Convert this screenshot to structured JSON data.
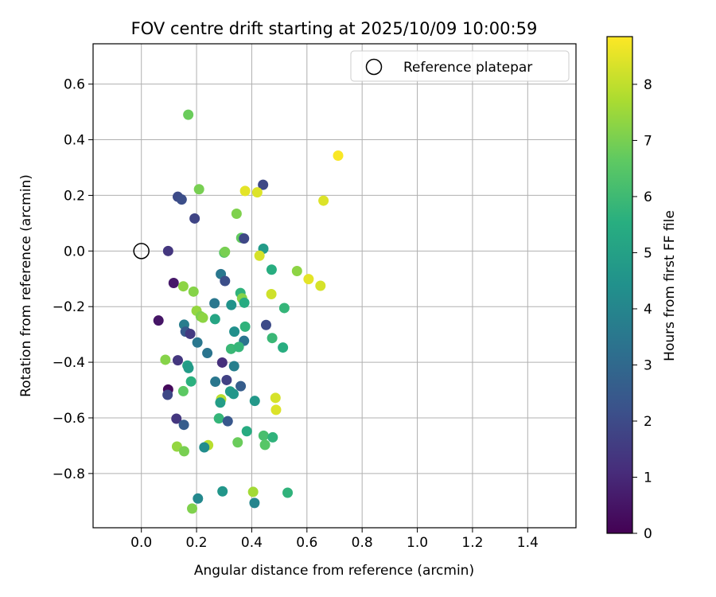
{
  "chart_data": {
    "type": "scatter",
    "title": "FOV centre drift starting at 2025/10/09 10:00:59",
    "xlabel": "Angular distance from reference (arcmin)",
    "ylabel": "Rotation from reference (arcmin)",
    "xlim": [
      -0.175,
      1.575
    ],
    "ylim": [
      -0.995,
      0.745
    ],
    "xticks": [
      0.0,
      0.2,
      0.4,
      0.6,
      0.8,
      1.0,
      1.2,
      1.4
    ],
    "xtick_labels": [
      "0.0",
      "0.2",
      "0.4",
      "0.6",
      "0.8",
      "1.0",
      "1.2",
      "1.4"
    ],
    "yticks": [
      0.6,
      0.4,
      0.2,
      0.0,
      -0.2,
      -0.4,
      -0.6,
      -0.8
    ],
    "ytick_labels": [
      "0.6",
      "0.4",
      "0.2",
      "0.0",
      "−0.2",
      "−0.4",
      "−0.6",
      "−0.8"
    ],
    "grid": true,
    "legend": {
      "position": "top-right",
      "label": "Reference platepar"
    },
    "reference_point": {
      "x": 0.0,
      "y": 0.0
    },
    "colorbar": {
      "label": "Hours from first FF file",
      "range": [
        0,
        8.85
      ],
      "ticks": [
        0,
        1,
        2,
        3,
        4,
        5,
        6,
        7,
        8
      ],
      "tick_labels": [
        "0",
        "1",
        "2",
        "3",
        "4",
        "5",
        "6",
        "7",
        "8"
      ],
      "colormap": "viridis"
    },
    "points": [
      {
        "x": 0.17,
        "y": 0.49,
        "h": 6.8
      },
      {
        "x": 0.713,
        "y": 0.343,
        "h": 8.8
      },
      {
        "x": 0.441,
        "y": 0.238,
        "h": 1.9
      },
      {
        "x": 0.209,
        "y": 0.222,
        "h": 7.0
      },
      {
        "x": 0.376,
        "y": 0.216,
        "h": 8.5
      },
      {
        "x": 0.42,
        "y": 0.211,
        "h": 8.4
      },
      {
        "x": 0.132,
        "y": 0.195,
        "h": 2.0
      },
      {
        "x": 0.146,
        "y": 0.185,
        "h": 2.1
      },
      {
        "x": 0.66,
        "y": 0.181,
        "h": 8.4
      },
      {
        "x": 0.345,
        "y": 0.134,
        "h": 7.1
      },
      {
        "x": 0.193,
        "y": 0.117,
        "h": 1.8
      },
      {
        "x": 0.362,
        "y": 0.047,
        "h": 6.7
      },
      {
        "x": 0.372,
        "y": 0.045,
        "h": 1.9
      },
      {
        "x": 0.442,
        "y": 0.008,
        "h": 4.8
      },
      {
        "x": 0.097,
        "y": 0.0,
        "h": 1.4
      },
      {
        "x": 0.3,
        "y": -0.006,
        "h": 6.4
      },
      {
        "x": 0.303,
        "y": -0.003,
        "h": 7.0
      },
      {
        "x": 0.428,
        "y": -0.017,
        "h": 8.3
      },
      {
        "x": 0.472,
        "y": -0.067,
        "h": 5.5
      },
      {
        "x": 0.564,
        "y": -0.072,
        "h": 7.3
      },
      {
        "x": 0.288,
        "y": -0.083,
        "h": 3.5
      },
      {
        "x": 0.303,
        "y": -0.108,
        "h": 2.1
      },
      {
        "x": 0.606,
        "y": -0.101,
        "h": 8.5
      },
      {
        "x": 0.649,
        "y": -0.125,
        "h": 8.3
      },
      {
        "x": 0.117,
        "y": -0.115,
        "h": 0.6
      },
      {
        "x": 0.152,
        "y": -0.127,
        "h": 7.3
      },
      {
        "x": 0.189,
        "y": -0.146,
        "h": 7.2
      },
      {
        "x": 0.359,
        "y": -0.151,
        "h": 5.7
      },
      {
        "x": 0.471,
        "y": -0.155,
        "h": 8.2
      },
      {
        "x": 0.365,
        "y": -0.17,
        "h": 7.2
      },
      {
        "x": 0.373,
        "y": -0.186,
        "h": 5.4
      },
      {
        "x": 0.265,
        "y": -0.188,
        "h": 3.5
      },
      {
        "x": 0.326,
        "y": -0.194,
        "h": 4.5
      },
      {
        "x": 0.518,
        "y": -0.205,
        "h": 5.8
      },
      {
        "x": 0.2,
        "y": -0.215,
        "h": 7.4
      },
      {
        "x": 0.215,
        "y": -0.235,
        "h": 7.1
      },
      {
        "x": 0.223,
        "y": -0.24,
        "h": 7.3
      },
      {
        "x": 0.062,
        "y": -0.25,
        "h": 0.5
      },
      {
        "x": 0.267,
        "y": -0.245,
        "h": 5.2
      },
      {
        "x": 0.155,
        "y": -0.265,
        "h": 3.7
      },
      {
        "x": 0.452,
        "y": -0.266,
        "h": 2.0
      },
      {
        "x": 0.376,
        "y": -0.272,
        "h": 5.7
      },
      {
        "x": 0.337,
        "y": -0.29,
        "h": 4.4
      },
      {
        "x": 0.16,
        "y": -0.29,
        "h": 2.5
      },
      {
        "x": 0.177,
        "y": -0.298,
        "h": 1.5
      },
      {
        "x": 0.474,
        "y": -0.313,
        "h": 5.9
      },
      {
        "x": 0.372,
        "y": -0.323,
        "h": 3.4
      },
      {
        "x": 0.203,
        "y": -0.329,
        "h": 3.5
      },
      {
        "x": 0.513,
        "y": -0.347,
        "h": 5.5
      },
      {
        "x": 0.325,
        "y": -0.352,
        "h": 5.9
      },
      {
        "x": 0.353,
        "y": -0.345,
        "h": 5.8
      },
      {
        "x": 0.239,
        "y": -0.367,
        "h": 3.4
      },
      {
        "x": 0.087,
        "y": -0.391,
        "h": 7.2
      },
      {
        "x": 0.132,
        "y": -0.393,
        "h": 1.4
      },
      {
        "x": 0.293,
        "y": -0.401,
        "h": 1.2
      },
      {
        "x": 0.167,
        "y": -0.412,
        "h": 5.0
      },
      {
        "x": 0.171,
        "y": -0.421,
        "h": 4.8
      },
      {
        "x": 0.336,
        "y": -0.414,
        "h": 3.8
      },
      {
        "x": 0.309,
        "y": -0.464,
        "h": 1.7
      },
      {
        "x": 0.18,
        "y": -0.469,
        "h": 5.6
      },
      {
        "x": 0.268,
        "y": -0.47,
        "h": 3.5
      },
      {
        "x": 0.36,
        "y": -0.486,
        "h": 2.6
      },
      {
        "x": 0.097,
        "y": -0.498,
        "h": 0.2
      },
      {
        "x": 0.152,
        "y": -0.504,
        "h": 6.6
      },
      {
        "x": 0.322,
        "y": -0.505,
        "h": 4.8
      },
      {
        "x": 0.095,
        "y": -0.517,
        "h": 1.9
      },
      {
        "x": 0.334,
        "y": -0.514,
        "h": 4.6
      },
      {
        "x": 0.486,
        "y": -0.528,
        "h": 8.3
      },
      {
        "x": 0.289,
        "y": -0.533,
        "h": 7.9
      },
      {
        "x": 0.411,
        "y": -0.539,
        "h": 4.7
      },
      {
        "x": 0.286,
        "y": -0.545,
        "h": 4.9
      },
      {
        "x": 0.488,
        "y": -0.571,
        "h": 8.4
      },
      {
        "x": 0.127,
        "y": -0.603,
        "h": 1.4
      },
      {
        "x": 0.281,
        "y": -0.602,
        "h": 5.8
      },
      {
        "x": 0.313,
        "y": -0.612,
        "h": 2.4
      },
      {
        "x": 0.154,
        "y": -0.625,
        "h": 2.6
      },
      {
        "x": 0.382,
        "y": -0.648,
        "h": 5.4
      },
      {
        "x": 0.443,
        "y": -0.664,
        "h": 6.2
      },
      {
        "x": 0.476,
        "y": -0.67,
        "h": 5.7
      },
      {
        "x": 0.349,
        "y": -0.688,
        "h": 6.8
      },
      {
        "x": 0.448,
        "y": -0.697,
        "h": 6.5
      },
      {
        "x": 0.242,
        "y": -0.698,
        "h": 7.9
      },
      {
        "x": 0.129,
        "y": -0.703,
        "h": 7.4
      },
      {
        "x": 0.228,
        "y": -0.706,
        "h": 4.3
      },
      {
        "x": 0.155,
        "y": -0.72,
        "h": 7.0
      },
      {
        "x": 0.405,
        "y": -0.866,
        "h": 7.6
      },
      {
        "x": 0.294,
        "y": -0.864,
        "h": 4.6
      },
      {
        "x": 0.53,
        "y": -0.869,
        "h": 5.7
      },
      {
        "x": 0.205,
        "y": -0.89,
        "h": 4.1
      },
      {
        "x": 0.41,
        "y": -0.906,
        "h": 4.0
      },
      {
        "x": 0.184,
        "y": -0.926,
        "h": 7.1
      }
    ]
  }
}
